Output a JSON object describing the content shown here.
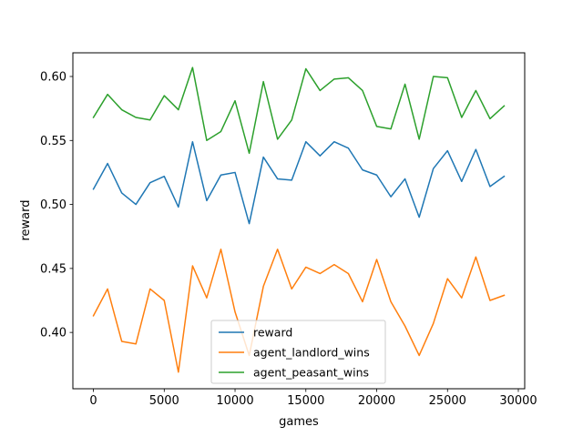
{
  "chart_data": {
    "type": "line",
    "title": "",
    "xlabel": "games",
    "ylabel": "reward",
    "xlim": [
      -1450,
      30450
    ],
    "ylim": [
      0.356,
      0.6185
    ],
    "xticks": [
      0,
      5000,
      10000,
      15000,
      20000,
      25000,
      30000
    ],
    "yticks": [
      0.4,
      0.45,
      0.5,
      0.55,
      0.6
    ],
    "xtick_labels": [
      "0",
      "5000",
      "10000",
      "15000",
      "20000",
      "25000",
      "30000"
    ],
    "ytick_labels": [
      "0.40",
      "0.45",
      "0.50",
      "0.55",
      "0.60"
    ],
    "grid": false,
    "legend_position": "lower-center",
    "x": [
      0,
      1000,
      2000,
      3000,
      4000,
      5000,
      6000,
      7000,
      8000,
      9000,
      10000,
      11000,
      12000,
      13000,
      14000,
      15000,
      16000,
      17000,
      18000,
      19000,
      20000,
      21000,
      22000,
      23000,
      24000,
      25000,
      26000,
      27000,
      28000,
      29000
    ],
    "series": [
      {
        "name": "reward",
        "color": "#1f77b4",
        "values": [
          0.512,
          0.532,
          0.509,
          0.5,
          0.517,
          0.522,
          0.498,
          0.549,
          0.503,
          0.523,
          0.525,
          0.485,
          0.537,
          0.52,
          0.519,
          0.549,
          0.538,
          0.549,
          0.544,
          0.527,
          0.523,
          0.506,
          0.52,
          0.49,
          0.528,
          0.542,
          0.518,
          0.543,
          0.514,
          0.522
        ]
      },
      {
        "name": "agent_landlord_wins",
        "color": "#ff7f0e",
        "values": [
          0.413,
          0.434,
          0.393,
          0.391,
          0.434,
          0.425,
          0.369,
          0.452,
          0.427,
          0.465,
          0.416,
          0.382,
          0.436,
          0.465,
          0.434,
          0.451,
          0.446,
          0.453,
          0.446,
          0.424,
          0.457,
          0.424,
          0.405,
          0.382,
          0.407,
          0.442,
          0.427,
          0.459,
          0.425,
          0.429
        ]
      },
      {
        "name": "agent_peasant_wins",
        "color": "#2ca02c",
        "values": [
          0.568,
          0.586,
          0.574,
          0.568,
          0.566,
          0.585,
          0.574,
          0.607,
          0.55,
          0.557,
          0.581,
          0.54,
          0.596,
          0.551,
          0.566,
          0.606,
          0.589,
          0.598,
          0.599,
          0.589,
          0.561,
          0.559,
          0.594,
          0.551,
          0.6,
          0.599,
          0.568,
          0.589,
          0.567,
          0.577
        ]
      }
    ]
  }
}
